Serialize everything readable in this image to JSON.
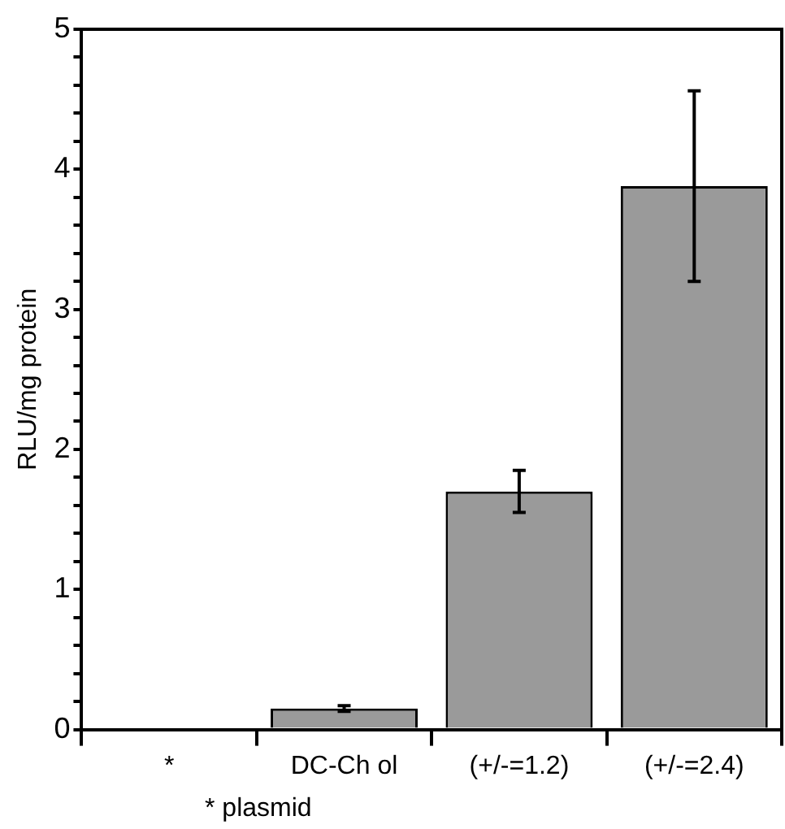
{
  "chart_data": {
    "type": "bar",
    "ylabel": "RLU/mg protein",
    "categories": [
      "*",
      "DC-Ch ol",
      "(+/-=1.2)",
      "(+/-=2.4)"
    ],
    "values": [
      0,
      0.15,
      1.7,
      3.88
    ],
    "errors": [
      null,
      0.02,
      0.15,
      0.68
    ],
    "color": "#9a9a9a",
    "ylim": [
      0,
      5
    ],
    "yticks": [
      0,
      {
        "value": 0.2,
        "label": null
      },
      {
        "value": 0.4,
        "label": null
      },
      {
        "value": 0.6,
        "label": null
      },
      {
        "value": 0.8,
        "label": null
      },
      1,
      {
        "value": 1.2,
        "label": null
      },
      {
        "value": 1.4,
        "label": null
      },
      {
        "value": 1.6,
        "label": null
      },
      {
        "value": 1.8,
        "label": null
      },
      2,
      {
        "value": 2.2,
        "label": null
      },
      {
        "value": 2.4,
        "label": null
      },
      {
        "value": 2.6,
        "label": null
      },
      {
        "value": 2.8,
        "label": null
      },
      3,
      {
        "value": 3.2,
        "label": null
      },
      {
        "value": 3.4,
        "label": null
      },
      {
        "value": 3.6,
        "label": null
      },
      {
        "value": 3.8,
        "label": null
      },
      4,
      {
        "value": 4.2,
        "label": null
      },
      {
        "value": 4.4,
        "label": null
      },
      {
        "value": 4.6,
        "label": null
      },
      {
        "value": 4.8,
        "label": null
      },
      5
    ],
    "grid": false,
    "annotations": [
      "* plasmid"
    ]
  }
}
